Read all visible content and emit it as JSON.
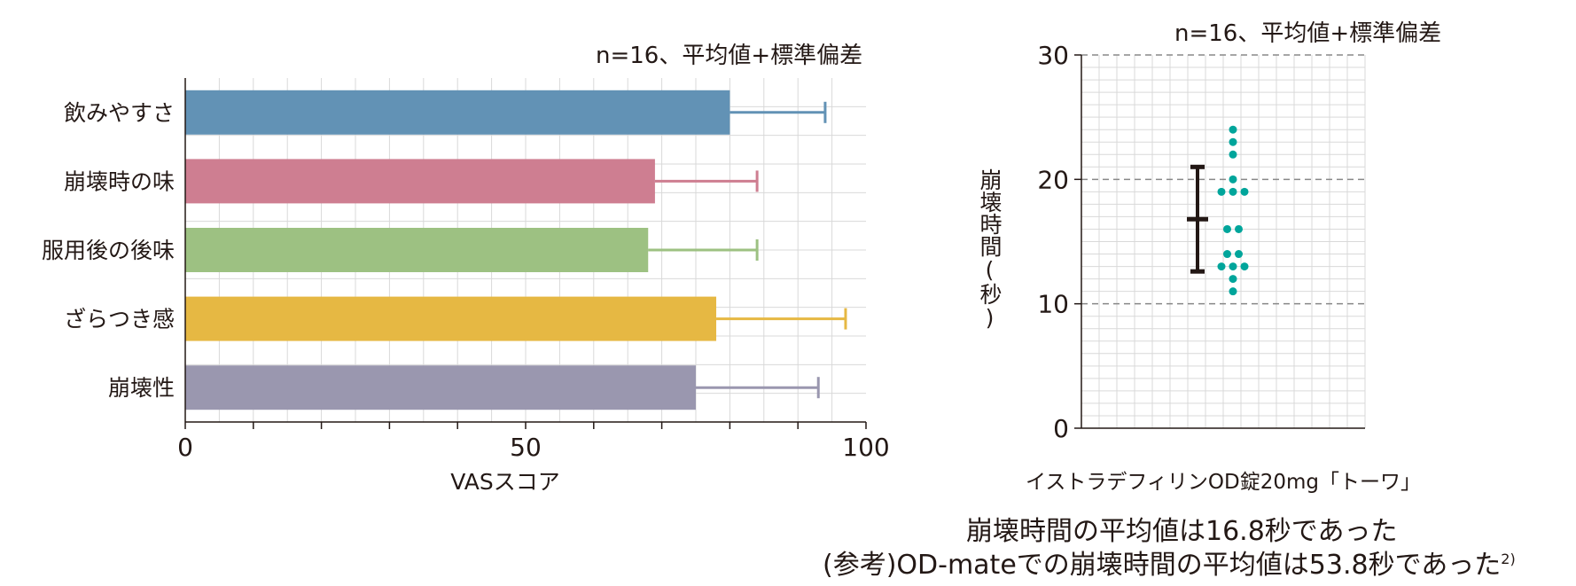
{
  "charts": [
    {
      "note": "n=16、平均値+標準偏差",
      "chart_data": {
        "type": "bar",
        "orientation": "horizontal",
        "categories": [
          "飲みやすさ",
          "崩壊時の味",
          "服用後の後味",
          "ざらつき感",
          "崩壊性"
        ],
        "values": [
          80,
          69,
          68,
          78,
          75
        ],
        "error_upper": [
          94,
          84,
          84,
          97,
          93
        ],
        "colors": [
          "#6292B5",
          "#CE7E91",
          "#9DC182",
          "#E6B843",
          "#9A97AF"
        ],
        "xlabel": "VASスコア",
        "xlim": [
          0,
          100
        ],
        "xticks": [
          0,
          50,
          100
        ],
        "grid": true
      }
    },
    {
      "note": "n=16、平均値+標準偏差",
      "chart_data": {
        "type": "scatter",
        "category": "イストラデフィリンOD錠20mg「トーワ」",
        "ylabel": "崩壊時間(秒)",
        "ylim": [
          0,
          30
        ],
        "yticks": [
          0,
          10,
          20,
          30
        ],
        "points": [
          24,
          23,
          22,
          20,
          19,
          19,
          19,
          16,
          16,
          14,
          14,
          13,
          13,
          13,
          12,
          11
        ],
        "mean": 16.8,
        "sd_range": [
          12.6,
          21
        ],
        "point_color": "#00A59B",
        "grid": true
      }
    }
  ],
  "captions": {
    "line1": "崩壊時間の平均値は16.8秒であった",
    "line2": "(参考)OD-mateでの崩壊時間の平均値は53.8秒であった",
    "line2_sup": "2)"
  }
}
